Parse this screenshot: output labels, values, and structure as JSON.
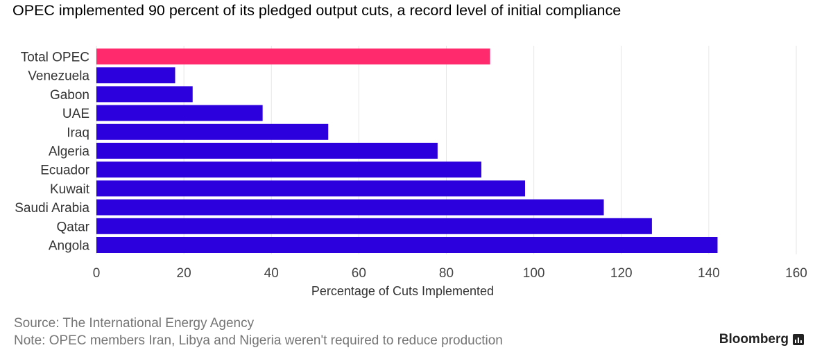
{
  "chart_data": {
    "type": "bar",
    "orientation": "horizontal",
    "title": "OPEC implemented 90 percent of its pledged output cuts, a record level of initial compliance",
    "xlabel": "Percentage of Cuts Implemented",
    "ylabel": "",
    "xlim": [
      0,
      160
    ],
    "xticks": [
      "0",
      "20",
      "40",
      "60",
      "80",
      "100",
      "120",
      "140",
      "160"
    ],
    "grid": true,
    "categories": [
      "Total OPEC",
      "Venezuela",
      "Gabon",
      "UAE",
      "Iraq",
      "Algeria",
      "Ecuador",
      "Kuwait",
      "Saudi Arabia",
      "Qatar",
      "Angola"
    ],
    "values": [
      90,
      18,
      22,
      38,
      53,
      78,
      88,
      98,
      116,
      127,
      142
    ],
    "colors": {
      "highlight": "#ff2a6d",
      "bar": "#2c00dc",
      "grid": "#e6e6e6",
      "axis_text": "#444444"
    }
  },
  "footer": {
    "source": "Source: The International Energy Agency",
    "note": "Note: OPEC members Iran, Libya and Nigeria weren't required to reduce production"
  },
  "brand": {
    "name": "Bloomberg",
    "icon": "bloomberg-terminal-icon"
  }
}
